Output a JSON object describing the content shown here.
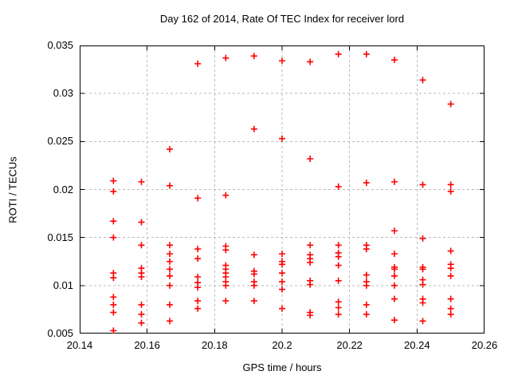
{
  "chart_data": {
    "type": "scatter",
    "title": "Day 162 of 2014, Rate Of TEC Index for receiver lord",
    "xlabel": "GPS time / hours",
    "ylabel": "ROTI / TECUs",
    "xlim": [
      20.14,
      20.26
    ],
    "ylim": [
      0.005,
      0.035
    ],
    "x_ticks": [
      20.14,
      20.16,
      20.18,
      20.2,
      20.22,
      20.24,
      20.26
    ],
    "x_tick_labels": [
      "20.14",
      "20.16",
      "20.18",
      "20.2",
      "20.22",
      "20.24",
      "20.26"
    ],
    "y_ticks": [
      0.005,
      0.01,
      0.015,
      0.02,
      0.025,
      0.03,
      0.035
    ],
    "y_tick_labels": [
      "0.005",
      "0.01",
      "0.015",
      "0.02",
      "0.025",
      "0.03",
      "0.035"
    ],
    "grid": true,
    "legend": "none",
    "colors": {
      "marker": "#ff0000",
      "grid": "#bbbbbb",
      "border": "#000000"
    },
    "marker_shape": "plus",
    "series": [
      {
        "name": "ROTI",
        "points": [
          [
            20.15,
            0.0209
          ],
          [
            20.15,
            0.0198
          ],
          [
            20.15,
            0.0167
          ],
          [
            20.15,
            0.015
          ],
          [
            20.15,
            0.0113
          ],
          [
            20.15,
            0.0108
          ],
          [
            20.15,
            0.0088
          ],
          [
            20.15,
            0.008
          ],
          [
            20.15,
            0.0072
          ],
          [
            20.15,
            0.0053
          ],
          [
            20.1583,
            0.0208
          ],
          [
            20.1583,
            0.0166
          ],
          [
            20.1583,
            0.0142
          ],
          [
            20.1583,
            0.0118
          ],
          [
            20.1583,
            0.0113
          ],
          [
            20.1583,
            0.0109
          ],
          [
            20.1583,
            0.008
          ],
          [
            20.1583,
            0.007
          ],
          [
            20.1583,
            0.0061
          ],
          [
            20.1667,
            0.0242
          ],
          [
            20.1667,
            0.0204
          ],
          [
            20.1667,
            0.0142
          ],
          [
            20.1667,
            0.0133
          ],
          [
            20.1667,
            0.0125
          ],
          [
            20.1667,
            0.0117
          ],
          [
            20.1667,
            0.011
          ],
          [
            20.1667,
            0.01
          ],
          [
            20.1667,
            0.008
          ],
          [
            20.1667,
            0.0063
          ],
          [
            20.175,
            0.0331
          ],
          [
            20.175,
            0.0191
          ],
          [
            20.175,
            0.0138
          ],
          [
            20.175,
            0.0128
          ],
          [
            20.175,
            0.0109
          ],
          [
            20.175,
            0.0103
          ],
          [
            20.175,
            0.0098
          ],
          [
            20.175,
            0.0084
          ],
          [
            20.175,
            0.0076
          ],
          [
            20.1833,
            0.0337
          ],
          [
            20.1833,
            0.0194
          ],
          [
            20.1833,
            0.0141
          ],
          [
            20.1833,
            0.0137
          ],
          [
            20.1833,
            0.0121
          ],
          [
            20.1833,
            0.0117
          ],
          [
            20.1833,
            0.0113
          ],
          [
            20.1833,
            0.0109
          ],
          [
            20.1833,
            0.0104
          ],
          [
            20.1833,
            0.01
          ],
          [
            20.1833,
            0.0084
          ],
          [
            20.1917,
            0.0339
          ],
          [
            20.1917,
            0.0263
          ],
          [
            20.1917,
            0.0132
          ],
          [
            20.1917,
            0.0115
          ],
          [
            20.1917,
            0.0112
          ],
          [
            20.1917,
            0.0104
          ],
          [
            20.1917,
            0.01
          ],
          [
            20.1917,
            0.0084
          ],
          [
            20.2,
            0.0334
          ],
          [
            20.2,
            0.0253
          ],
          [
            20.2,
            0.0133
          ],
          [
            20.2,
            0.0125
          ],
          [
            20.2,
            0.0122
          ],
          [
            20.2,
            0.0113
          ],
          [
            20.2,
            0.0104
          ],
          [
            20.2,
            0.0096
          ],
          [
            20.2,
            0.0076
          ],
          [
            20.2083,
            0.0333
          ],
          [
            20.2083,
            0.0232
          ],
          [
            20.2083,
            0.0142
          ],
          [
            20.2083,
            0.0132
          ],
          [
            20.2083,
            0.0128
          ],
          [
            20.2083,
            0.0124
          ],
          [
            20.2083,
            0.0105
          ],
          [
            20.2083,
            0.0101
          ],
          [
            20.2083,
            0.0072
          ],
          [
            20.2083,
            0.0069
          ],
          [
            20.2167,
            0.0341
          ],
          [
            20.2167,
            0.0203
          ],
          [
            20.2167,
            0.0142
          ],
          [
            20.2167,
            0.0134
          ],
          [
            20.2167,
            0.013
          ],
          [
            20.2167,
            0.0121
          ],
          [
            20.2167,
            0.0105
          ],
          [
            20.2167,
            0.0083
          ],
          [
            20.2167,
            0.0077
          ],
          [
            20.2167,
            0.007
          ],
          [
            20.225,
            0.0341
          ],
          [
            20.225,
            0.0207
          ],
          [
            20.225,
            0.0142
          ],
          [
            20.225,
            0.0138
          ],
          [
            20.225,
            0.0111
          ],
          [
            20.225,
            0.0104
          ],
          [
            20.225,
            0.01
          ],
          [
            20.225,
            0.008
          ],
          [
            20.225,
            0.007
          ],
          [
            20.2333,
            0.0335
          ],
          [
            20.2333,
            0.0208
          ],
          [
            20.2333,
            0.0157
          ],
          [
            20.2333,
            0.0133
          ],
          [
            20.2333,
            0.0119
          ],
          [
            20.2333,
            0.0117
          ],
          [
            20.2333,
            0.011
          ],
          [
            20.2333,
            0.01
          ],
          [
            20.2333,
            0.0086
          ],
          [
            20.2333,
            0.0064
          ],
          [
            20.2417,
            0.0314
          ],
          [
            20.2417,
            0.0205
          ],
          [
            20.2417,
            0.0149
          ],
          [
            20.2417,
            0.0119
          ],
          [
            20.2417,
            0.0117
          ],
          [
            20.2417,
            0.0106
          ],
          [
            20.2417,
            0.0101
          ],
          [
            20.2417,
            0.0086
          ],
          [
            20.2417,
            0.0082
          ],
          [
            20.2417,
            0.0063
          ],
          [
            20.25,
            0.0289
          ],
          [
            20.25,
            0.0205
          ],
          [
            20.25,
            0.0198
          ],
          [
            20.25,
            0.0136
          ],
          [
            20.25,
            0.0122
          ],
          [
            20.25,
            0.0118
          ],
          [
            20.25,
            0.011
          ],
          [
            20.25,
            0.0086
          ],
          [
            20.25,
            0.0076
          ],
          [
            20.25,
            0.007
          ]
        ]
      }
    ]
  }
}
